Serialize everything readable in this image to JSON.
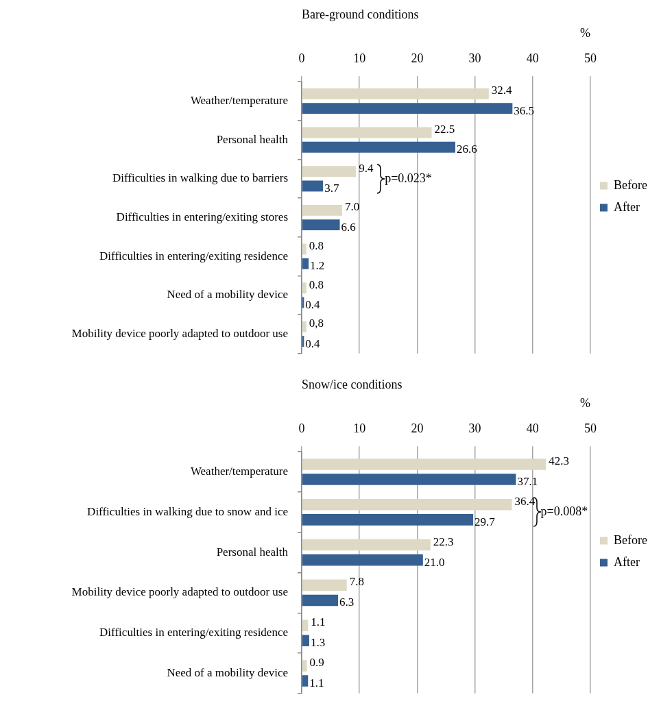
{
  "chart_data": [
    {
      "type": "bar",
      "orientation": "horizontal",
      "title": "Bare-ground conditions",
      "xlabel": "%",
      "categories": [
        "Weather/temperature",
        "Personal health",
        "Difficulties in walking due to barriers",
        "Difficulties in entering/exiting stores",
        "Difficulties in entering/exiting residence",
        "Need of a mobility device",
        "Mobility device poorly adapted to outdoor use"
      ],
      "series": [
        {
          "name": "Before",
          "color": "#ddd9c4",
          "values": [
            32.4,
            22.5,
            9.4,
            7.0,
            0.8,
            0.8,
            0.8
          ],
          "value_labels": [
            "32.4",
            "22.5",
            "9.4",
            "7.0",
            "0.8",
            "0.8",
            "0,8"
          ]
        },
        {
          "name": "After",
          "color": "#376092",
          "values": [
            36.5,
            26.6,
            3.7,
            6.6,
            1.2,
            0.4,
            0.4
          ],
          "value_labels": [
            "36.5",
            "26.6",
            "3.7",
            "6.6",
            "1.2",
            "0.4",
            "0.4"
          ]
        }
      ],
      "xlim": [
        0,
        50
      ],
      "xticks": [
        0,
        10,
        20,
        30,
        40,
        50
      ],
      "grid": "x",
      "legend": "right",
      "annotations": [
        {
          "text": "p=0.023*",
          "x": 9.4,
          "y": "Difficulties in walking due to barriers"
        }
      ]
    },
    {
      "type": "bar",
      "orientation": "horizontal",
      "title": "Snow/ice conditions",
      "xlabel": "%",
      "categories": [
        "Weather/temperature",
        "Difficulties in walking due to snow and ice",
        "Personal health",
        "Mobility device poorly adapted to outdoor use",
        "Difficulties in entering/exiting residence",
        "Need of a mobility device"
      ],
      "series": [
        {
          "name": "Before",
          "color": "#ddd9c4",
          "values": [
            42.3,
            36.4,
            22.3,
            7.8,
            1.1,
            0.9
          ],
          "value_labels": [
            "42.3",
            "36.4",
            "22.3",
            "7.8",
            "1.1",
            "0.9"
          ]
        },
        {
          "name": "After",
          "color": "#376092",
          "values": [
            37.1,
            29.7,
            21.0,
            6.3,
            1.3,
            1.1
          ],
          "value_labels": [
            "37.1",
            "29.7",
            "21.0",
            "6.3",
            "1.3",
            "1.1"
          ]
        }
      ],
      "xlim": [
        0,
        50
      ],
      "xticks": [
        0,
        10,
        20,
        30,
        40,
        50
      ],
      "grid": "x",
      "legend": "right",
      "annotations": [
        {
          "text": "p=0.008*",
          "x": 36.4,
          "y": "Difficulties in walking due to snow and ice"
        }
      ]
    }
  ]
}
